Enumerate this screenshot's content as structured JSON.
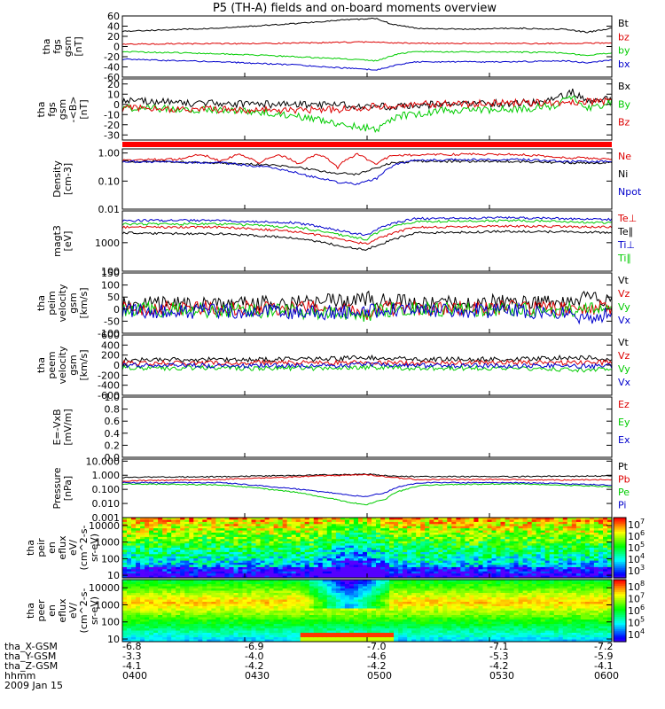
{
  "title": "P5 (TH-A) fields and on-board moments overview",
  "colors": {
    "black": "#000000",
    "red": "#dd0000",
    "green": "#00cc00",
    "blue": "#0000cc"
  },
  "chart_data": [
    {
      "type": "line",
      "ylabel": [
        "tha",
        "fgs",
        "gsm",
        "[nT]"
      ],
      "ylim": [
        -60,
        60
      ],
      "yticks": [
        "60",
        "40",
        "20",
        "0",
        "-20",
        "-40",
        "-60"
      ],
      "legend_placement": "right",
      "series": [
        {
          "name": "Bt",
          "color": "black",
          "x": [
            0,
            0.2,
            0.35,
            0.45,
            0.52,
            0.55,
            0.6,
            0.7,
            0.8,
            0.9,
            0.95,
            1
          ],
          "y": [
            30,
            36,
            45,
            52,
            55,
            44,
            36,
            34,
            36,
            34,
            28,
            36
          ]
        },
        {
          "name": "bz",
          "color": "red",
          "x": [
            0,
            0.3,
            0.5,
            0.55,
            0.7,
            0.9,
            1
          ],
          "y": [
            5,
            6,
            9,
            7,
            6,
            6,
            7
          ]
        },
        {
          "name": "by",
          "color": "green",
          "x": [
            0,
            0.2,
            0.35,
            0.45,
            0.52,
            0.56,
            0.6,
            0.8,
            0.9,
            0.95,
            1
          ],
          "y": [
            -10,
            -14,
            -20,
            -24,
            -28,
            -15,
            -10,
            -11,
            -12,
            -18,
            -12
          ]
        },
        {
          "name": "bx",
          "color": "blue",
          "x": [
            0,
            0.2,
            0.35,
            0.45,
            0.52,
            0.56,
            0.6,
            0.8,
            0.9,
            0.95,
            1
          ],
          "y": [
            -25,
            -30,
            -36,
            -42,
            -46,
            -36,
            -30,
            -30,
            -28,
            -32,
            -26
          ]
        }
      ]
    },
    {
      "type": "line",
      "ylabel": [
        "tha",
        "fgs",
        "gsm",
        "-<B>",
        "[nT]"
      ],
      "ylim": [
        -35,
        25
      ],
      "yticks": [
        "20",
        "10",
        "0",
        "-10",
        "-20",
        "-30"
      ],
      "legend_placement": "right",
      "series": [
        {
          "name": "Bx",
          "color": "black",
          "x": [
            0,
            0.15,
            0.3,
            0.45,
            0.55,
            0.65,
            0.8,
            0.88,
            0.92,
            0.95,
            1
          ],
          "y": [
            4,
            1,
            0,
            -1,
            -2,
            0,
            1,
            4,
            12,
            2,
            6
          ]
        },
        {
          "name": "By",
          "color": "green",
          "x": [
            0,
            0.15,
            0.3,
            0.4,
            0.48,
            0.52,
            0.56,
            0.65,
            0.8,
            0.88,
            0.92,
            0.95,
            1
          ],
          "y": [
            -3,
            -5,
            -8,
            -15,
            -22,
            -24,
            -12,
            -6,
            -5,
            -2,
            8,
            -4,
            2
          ]
        },
        {
          "name": "Bz",
          "color": "red",
          "x": [
            0,
            0.2,
            0.35,
            0.45,
            0.52,
            0.6,
            0.75,
            0.9,
            1
          ],
          "y": [
            -4,
            -5,
            -6,
            -5,
            -2,
            0,
            1,
            2,
            3
          ]
        }
      ]
    },
    {
      "type": "line",
      "ylabel": [
        "Density",
        "[cm-3]"
      ],
      "yscale": "log",
      "ylim": [
        0.01,
        1.4
      ],
      "yticks": [
        {
          "v": 1.0,
          "label": "1.00"
        },
        {
          "v": 0.1,
          "label": "0.10"
        },
        {
          "v": 0.01,
          "label": "0.01"
        }
      ],
      "legend_placement": "right",
      "series": [
        {
          "name": "Ne",
          "color": "red",
          "x": [
            0,
            0.12,
            0.16,
            0.2,
            0.24,
            0.28,
            0.32,
            0.36,
            0.4,
            0.44,
            0.48,
            0.5,
            0.52,
            0.55,
            0.6,
            0.7,
            0.8,
            0.9,
            1
          ],
          "y": [
            0.55,
            0.6,
            0.9,
            0.5,
            0.9,
            0.45,
            0.85,
            0.4,
            0.9,
            0.3,
            0.9,
            0.6,
            0.4,
            0.8,
            0.85,
            0.9,
            0.9,
            0.7,
            0.6
          ]
        },
        {
          "name": "Ni",
          "color": "black",
          "x": [
            0,
            0.2,
            0.35,
            0.42,
            0.48,
            0.52,
            0.55,
            0.6,
            0.8,
            0.9,
            1
          ],
          "y": [
            0.5,
            0.45,
            0.32,
            0.2,
            0.17,
            0.3,
            0.45,
            0.5,
            0.5,
            0.45,
            0.45
          ]
        },
        {
          "name": "Npot",
          "color": "blue",
          "x": [
            0,
            0.2,
            0.3,
            0.38,
            0.44,
            0.48,
            0.52,
            0.56,
            0.6,
            0.8,
            0.9,
            1
          ],
          "y": [
            0.5,
            0.45,
            0.3,
            0.15,
            0.09,
            0.08,
            0.12,
            0.4,
            0.55,
            0.6,
            0.5,
            0.5
          ]
        }
      ]
    },
    {
      "type": "line",
      "ylabel": [
        "magt3",
        "[eV]"
      ],
      "yscale": "log",
      "ylim": [
        100,
        13000
      ],
      "yticks": [
        {
          "v": 1000,
          "label": "1000"
        },
        {
          "v": 100,
          "label": "100"
        }
      ],
      "legend_placement": "right",
      "series": [
        {
          "name": "Te⊥",
          "color": "red",
          "x": [
            0,
            0.2,
            0.35,
            0.45,
            0.5,
            0.55,
            0.6,
            0.8,
            1
          ],
          "y": [
            3500,
            3500,
            2500,
            1200,
            900,
            2000,
            3500,
            3800,
            3500
          ]
        },
        {
          "name": "Te∥",
          "color": "black",
          "x": [
            0,
            0.2,
            0.35,
            0.45,
            0.5,
            0.55,
            0.6,
            0.8,
            1
          ],
          "y": [
            2200,
            2000,
            1500,
            700,
            550,
            1200,
            2200,
            2500,
            2300
          ]
        },
        {
          "name": "Ti⊥",
          "color": "blue",
          "x": [
            0,
            0.2,
            0.35,
            0.45,
            0.5,
            0.55,
            0.6,
            0.8,
            1
          ],
          "y": [
            6000,
            6000,
            5000,
            2500,
            1800,
            4500,
            7000,
            7500,
            6500
          ]
        },
        {
          "name": "Ti∥",
          "color": "green",
          "x": [
            0,
            0.2,
            0.35,
            0.45,
            0.5,
            0.55,
            0.6,
            0.8,
            1
          ],
          "y": [
            4500,
            4500,
            3500,
            1800,
            1300,
            3500,
            5500,
            6000,
            5000
          ]
        }
      ]
    },
    {
      "type": "line",
      "ylabel": [
        "tha",
        "peim",
        "velocity",
        "gsm",
        "[km/s]"
      ],
      "ylim": [
        -100,
        150
      ],
      "yticks": [
        "150",
        "100",
        "50",
        "0",
        "-50",
        "-100"
      ],
      "legend_placement": "right",
      "series": [
        {
          "name": "Vt",
          "color": "black",
          "x": [
            0,
            0.2,
            0.4,
            0.5,
            0.52,
            0.7,
            0.9,
            0.95,
            1
          ],
          "y": [
            20,
            25,
            30,
            45,
            35,
            30,
            30,
            55,
            30
          ]
        },
        {
          "name": "Vz",
          "color": "red",
          "x": [
            0,
            0.2,
            0.4,
            0.5,
            0.52,
            0.7,
            0.9,
            1
          ],
          "y": [
            5,
            5,
            5,
            -20,
            5,
            5,
            5,
            5
          ]
        },
        {
          "name": "Vy",
          "color": "green",
          "x": [
            0,
            0.2,
            0.4,
            0.5,
            0.52,
            0.7,
            0.9,
            1
          ],
          "y": [
            0,
            -5,
            -10,
            -25,
            -5,
            0,
            -5,
            0
          ]
        },
        {
          "name": "Vx",
          "color": "blue",
          "x": [
            0,
            0.2,
            0.4,
            0.5,
            0.52,
            0.7,
            0.9,
            0.95,
            1
          ],
          "y": [
            -5,
            -10,
            -15,
            -10,
            -5,
            -5,
            -10,
            -45,
            -10
          ]
        }
      ]
    },
    {
      "type": "line",
      "ylabel": [
        "tha",
        "peem",
        "velocity",
        "gsm",
        "[km/s]"
      ],
      "ylim": [
        -600,
        600
      ],
      "yticks": [
        "600",
        "400",
        "200",
        "0",
        "-200",
        "-400",
        "-600"
      ],
      "legend_placement": "right",
      "series": [
        {
          "name": "Vt",
          "color": "black",
          "x": [
            0,
            0.2,
            0.4,
            0.5,
            0.6,
            0.8,
            0.95,
            1
          ],
          "y": [
            100,
            110,
            120,
            150,
            110,
            120,
            160,
            120
          ]
        },
        {
          "name": "Vz",
          "color": "red",
          "x": [
            0,
            0.2,
            0.4,
            0.5,
            0.6,
            0.8,
            1
          ],
          "y": [
            40,
            40,
            50,
            60,
            40,
            50,
            50
          ]
        },
        {
          "name": "Vy",
          "color": "green",
          "x": [
            0,
            0.2,
            0.4,
            0.5,
            0.6,
            0.8,
            0.95,
            1
          ],
          "y": [
            -50,
            -60,
            -60,
            -40,
            -60,
            -60,
            -100,
            -60
          ]
        },
        {
          "name": "Vx",
          "color": "blue",
          "x": [
            0,
            0.2,
            0.4,
            0.5,
            0.6,
            0.8,
            1
          ],
          "y": [
            0,
            -10,
            -20,
            10,
            -10,
            -10,
            -20
          ]
        }
      ]
    },
    {
      "type": "line",
      "ylabel": [
        "E=-VxB",
        "[mV/m]"
      ],
      "ylim": [
        0,
        1
      ],
      "yticks": [
        "1.0",
        "0.8",
        "0.6",
        "0.4",
        "0.2",
        "0.0"
      ],
      "legend_placement": "right",
      "series": [
        {
          "name": "Ez",
          "color": "red",
          "x": [],
          "y": []
        },
        {
          "name": "Ey",
          "color": "green",
          "x": [],
          "y": []
        },
        {
          "name": "Ex",
          "color": "blue",
          "x": [],
          "y": []
        }
      ]
    },
    {
      "type": "line",
      "ylabel": [
        "Pressure",
        "[nPa]"
      ],
      "yscale": "log",
      "ylim": [
        0.001,
        14
      ],
      "yticks": [
        {
          "v": 10,
          "label": "10.000"
        },
        {
          "v": 1,
          "label": "1.000"
        },
        {
          "v": 0.1,
          "label": "0.100"
        },
        {
          "v": 0.01,
          "label": "0.010"
        },
        {
          "v": 0.001,
          "label": "0.001"
        }
      ],
      "legend_placement": "right",
      "series": [
        {
          "name": "Pt",
          "color": "black",
          "x": [
            0,
            0.2,
            0.35,
            0.45,
            0.5,
            0.55,
            0.6,
            0.8,
            0.9,
            1
          ],
          "y": [
            0.7,
            0.8,
            0.95,
            1.1,
            1.2,
            0.9,
            0.8,
            0.8,
            0.85,
            0.9
          ]
        },
        {
          "name": "Pb",
          "color": "red",
          "x": [
            0,
            0.2,
            0.35,
            0.45,
            0.5,
            0.55,
            0.6,
            0.8,
            0.9,
            1
          ],
          "y": [
            0.4,
            0.5,
            0.75,
            1.0,
            1.1,
            0.7,
            0.5,
            0.5,
            0.45,
            0.5
          ]
        },
        {
          "name": "Pe",
          "color": "green",
          "x": [
            0,
            0.2,
            0.3,
            0.4,
            0.46,
            0.5,
            0.54,
            0.58,
            0.62,
            0.8,
            0.9,
            1
          ],
          "y": [
            0.25,
            0.2,
            0.1,
            0.03,
            0.012,
            0.008,
            0.02,
            0.1,
            0.2,
            0.25,
            0.2,
            0.15
          ]
        },
        {
          "name": "Pi",
          "color": "blue",
          "x": [
            0,
            0.2,
            0.3,
            0.4,
            0.46,
            0.5,
            0.54,
            0.58,
            0.62,
            0.8,
            0.9,
            1
          ],
          "y": [
            0.3,
            0.3,
            0.15,
            0.07,
            0.04,
            0.03,
            0.06,
            0.2,
            0.3,
            0.3,
            0.25,
            0.2
          ]
        }
      ]
    },
    {
      "type": "heatmap",
      "ylabel": [
        "tha",
        "peir",
        "en",
        "eflux",
        "eV/",
        "(cm^2-s-",
        "sr-eV)"
      ],
      "yscale": "log",
      "ylim": [
        7,
        30000
      ],
      "yticks": [
        {
          "v": 10000,
          "label": "10000"
        },
        {
          "v": 1000,
          "label": "1000"
        },
        {
          "v": 100,
          "label": "100"
        },
        {
          "v": 10,
          "label": "10"
        }
      ],
      "colorbar": {
        "ticks": [
          "10^7",
          "10^6",
          "10^5",
          "10^4",
          "10^3"
        ]
      }
    },
    {
      "type": "heatmap",
      "ylabel": [
        "tha",
        "peer",
        "en",
        "eflux",
        "eV/",
        "(cm^2-s-",
        "sr-eV)"
      ],
      "yscale": "log",
      "ylim": [
        7,
        30000
      ],
      "yticks": [
        {
          "v": 10000,
          "label": "10000"
        },
        {
          "v": 1000,
          "label": "1000"
        },
        {
          "v": 100,
          "label": "100"
        },
        {
          "v": 10,
          "label": "10"
        }
      ],
      "colorbar": {
        "ticks": [
          "10^8",
          "10^7",
          "10^6",
          "10^5",
          "10^4"
        ]
      }
    }
  ],
  "footer": {
    "rows": [
      {
        "label": "tha_X-GSM",
        "values": [
          "-6.8",
          "-6.9",
          "-7.0",
          "-7.1",
          "-7.2"
        ]
      },
      {
        "label": "tha_Y-GSM",
        "values": [
          "-3.3",
          "-4.0",
          "-4.6",
          "-5.3",
          "-5.9"
        ]
      },
      {
        "label": "tha_Z-GSM",
        "values": [
          "-4.1",
          "-4.2",
          "-4.2",
          "-4.2",
          "-4.1"
        ]
      },
      {
        "label": "hhmm",
        "values": [
          "0400",
          "0430",
          "0500",
          "0530",
          "0600"
        ]
      }
    ],
    "date": "2009 Jan 15"
  }
}
